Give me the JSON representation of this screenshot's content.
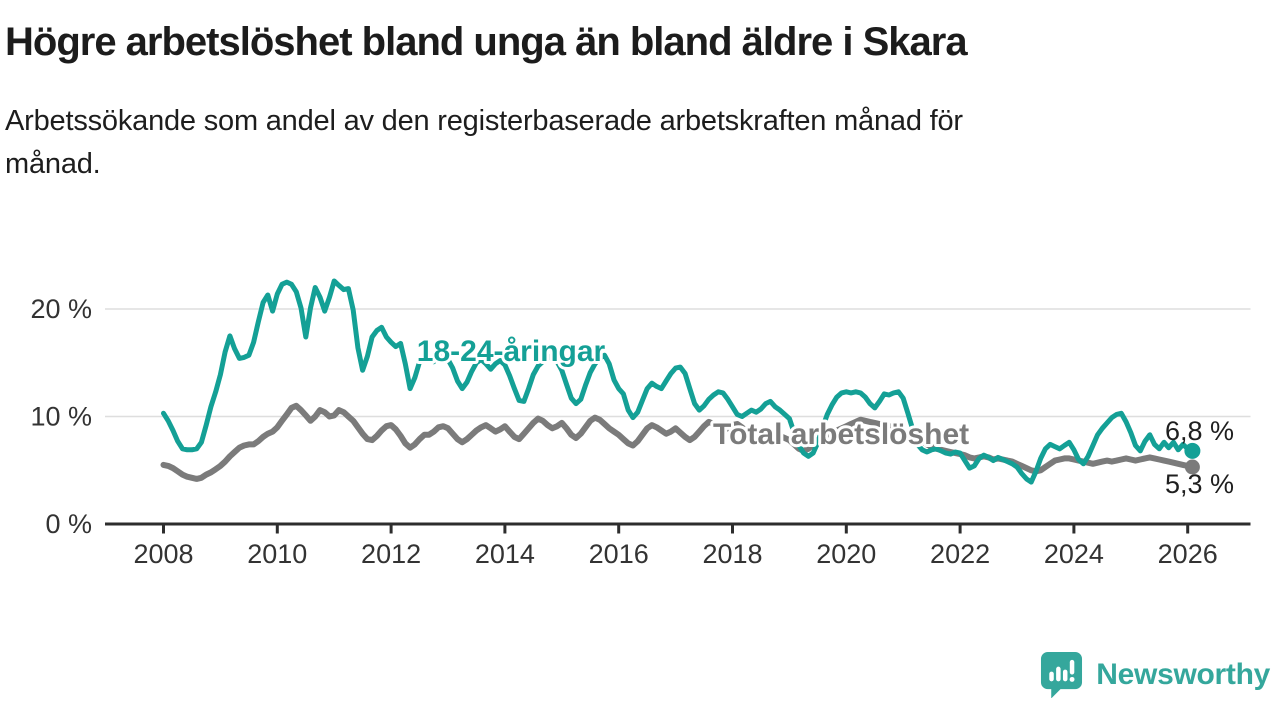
{
  "header": {
    "title": "Högre arbetslöshet bland unga än bland äldre i Skara",
    "subtitle": "Arbetssökande som andel av den registerbaserade arbetskraften månad för\nmånad."
  },
  "chart_data": {
    "type": "line",
    "title": "Högre arbetslöshet bland unga än bland äldre i Skara",
    "xlabel": "",
    "ylabel": "Arbetssökande som andel av den registerbaserade arbetskraften",
    "x_interval": "monthly",
    "x_start": "2008-01",
    "x_end": "2026-02",
    "x_ticks": [
      "2008",
      "2010",
      "2012",
      "2014",
      "2016",
      "2018",
      "2020",
      "2022",
      "2024",
      "2026"
    ],
    "y_ticks": [
      {
        "label": "0 %",
        "value": 0
      },
      {
        "label": "10 %",
        "value": 10
      },
      {
        "label": "20 %",
        "value": 20
      }
    ],
    "ylim": [
      0,
      24
    ],
    "grid": "horizontal",
    "legend_position": "inline-labels",
    "series": [
      {
        "name": "18-24-åringar",
        "color": "#14a096",
        "end_label": "6,8 %",
        "end_value": 6.8,
        "values": [
          10.3,
          9.6,
          8.7,
          7.7,
          7.0,
          6.9,
          6.9,
          7.0,
          7.6,
          9.2,
          10.9,
          12.3,
          13.9,
          16.0,
          17.5,
          16.3,
          15.4,
          15.5,
          15.7,
          16.9,
          18.8,
          20.6,
          21.3,
          19.8,
          21.4,
          22.3,
          22.5,
          22.3,
          21.6,
          20.1,
          17.4,
          20.1,
          22.0,
          21.1,
          19.8,
          21.1,
          22.6,
          22.2,
          21.8,
          21.9,
          19.9,
          16.4,
          14.3,
          15.6,
          17.4,
          18.0,
          18.3,
          17.4,
          16.9,
          16.5,
          16.8,
          14.9,
          12.6,
          13.6,
          15.1,
          15.6,
          15.3,
          15.1,
          15.7,
          15.4,
          15.3,
          14.5,
          13.3,
          12.6,
          13.2,
          14.2,
          15.0,
          15.3,
          14.9,
          14.4,
          14.9,
          15.2,
          14.8,
          13.8,
          12.6,
          11.5,
          11.4,
          12.6,
          13.9,
          14.7,
          15.1,
          15.4,
          15.7,
          15.1,
          14.3,
          13.0,
          11.7,
          11.2,
          11.6,
          12.9,
          14.1,
          14.9,
          15.4,
          15.7,
          14.9,
          13.4,
          12.6,
          12.1,
          10.6,
          9.9,
          10.4,
          11.5,
          12.6,
          13.1,
          12.8,
          12.6,
          13.3,
          14.0,
          14.5,
          14.6,
          14.0,
          12.6,
          11.2,
          10.6,
          11.0,
          11.6,
          12.0,
          12.3,
          12.2,
          11.6,
          10.9,
          10.2,
          10.0,
          10.3,
          10.6,
          10.4,
          10.7,
          11.2,
          11.4,
          10.9,
          10.6,
          10.2,
          9.8,
          8.5,
          7.3,
          6.6,
          6.3,
          6.6,
          7.6,
          9.0,
          10.2,
          11.1,
          11.8,
          12.2,
          12.3,
          12.2,
          12.3,
          12.2,
          11.8,
          11.2,
          10.8,
          11.4,
          12.1,
          12.0,
          12.2,
          12.3,
          11.7,
          10.3,
          8.8,
          7.4,
          6.9,
          6.7,
          6.9,
          7.0,
          6.8,
          6.6,
          6.5,
          6.7,
          6.6,
          5.9,
          5.2,
          5.4,
          6.1,
          6.4,
          6.2,
          5.9,
          6.2,
          6.0,
          5.8,
          5.6,
          5.3,
          4.7,
          4.2,
          3.9,
          4.9,
          6.1,
          7.0,
          7.4,
          7.2,
          7.0,
          7.3,
          7.6,
          6.9,
          6.0,
          5.6,
          6.3,
          7.3,
          8.3,
          8.9,
          9.4,
          9.9,
          10.2,
          10.3,
          9.5,
          8.5,
          7.3,
          6.8,
          7.7,
          8.3,
          7.4,
          7.0,
          7.6,
          7.1,
          7.6,
          6.9,
          7.4,
          7.0,
          6.8
        ]
      },
      {
        "name": "Total arbetslöshet",
        "color": "#7b7b7b",
        "end_label": "5,3 %",
        "end_value": 5.3,
        "values": [
          5.5,
          5.4,
          5.2,
          4.9,
          4.6,
          4.4,
          4.3,
          4.2,
          4.3,
          4.6,
          4.8,
          5.1,
          5.4,
          5.8,
          6.3,
          6.7,
          7.1,
          7.3,
          7.4,
          7.4,
          7.7,
          8.1,
          8.4,
          8.6,
          9.0,
          9.6,
          10.2,
          10.8,
          11.0,
          10.6,
          10.1,
          9.6,
          10.0,
          10.6,
          10.4,
          10.0,
          10.1,
          10.6,
          10.4,
          10.0,
          9.6,
          9.0,
          8.4,
          7.9,
          7.8,
          8.2,
          8.7,
          9.1,
          9.2,
          8.8,
          8.2,
          7.5,
          7.1,
          7.4,
          7.9,
          8.3,
          8.3,
          8.6,
          9.0,
          9.1,
          8.9,
          8.4,
          7.9,
          7.6,
          7.9,
          8.3,
          8.7,
          9.0,
          9.2,
          8.9,
          8.6,
          8.8,
          9.1,
          8.6,
          8.1,
          7.9,
          8.4,
          8.9,
          9.4,
          9.8,
          9.6,
          9.2,
          8.9,
          9.1,
          9.4,
          8.9,
          8.3,
          8.0,
          8.4,
          9.0,
          9.6,
          9.9,
          9.7,
          9.3,
          8.9,
          8.6,
          8.3,
          7.9,
          7.5,
          7.3,
          7.7,
          8.3,
          8.9,
          9.2,
          9.0,
          8.7,
          8.4,
          8.6,
          8.9,
          8.5,
          8.1,
          7.8,
          8.1,
          8.6,
          9.1,
          9.5,
          9.3,
          9.0,
          8.7,
          8.9,
          9.2,
          9.3,
          9.0,
          8.5,
          7.9,
          7.5,
          7.7,
          8.1,
          8.4,
          8.4,
          8.2,
          8.0,
          7.8,
          7.4,
          7.0,
          6.8,
          7.0,
          7.4,
          7.8,
          8.1,
          8.3,
          8.5,
          8.7,
          8.9,
          9.1,
          9.3,
          9.5,
          9.7,
          9.6,
          9.5,
          9.4,
          9.3,
          9.2,
          9.1,
          9.0,
          8.8,
          8.6,
          8.4,
          8.1,
          7.9,
          7.7,
          7.4,
          7.2,
          7.0,
          6.9,
          6.8,
          6.7,
          6.6,
          6.5,
          6.4,
          6.2,
          6.1,
          6.2,
          6.3,
          6.2,
          6.0,
          6.1,
          6.0,
          5.9,
          5.8,
          5.6,
          5.4,
          5.2,
          5.0,
          4.9,
          5.0,
          5.3,
          5.6,
          5.9,
          6.0,
          6.1,
          6.1,
          6.0,
          5.9,
          5.8,
          5.7,
          5.6,
          5.7,
          5.8,
          5.9,
          5.8,
          5.9,
          6.0,
          6.1,
          6.0,
          5.9,
          6.0,
          6.1,
          6.2,
          6.1,
          6.0,
          5.9,
          5.8,
          5.7,
          5.6,
          5.5,
          5.4,
          5.3
        ]
      }
    ]
  },
  "colors": {
    "axis": "#2d2d2d",
    "grid": "#dedede",
    "tick_text": "#333333",
    "value_text": "#1f1f1f",
    "logo": "#35a79c"
  },
  "logo": {
    "text": "Newsworthy",
    "icon": "newsworthy-chart-bubble-icon"
  }
}
